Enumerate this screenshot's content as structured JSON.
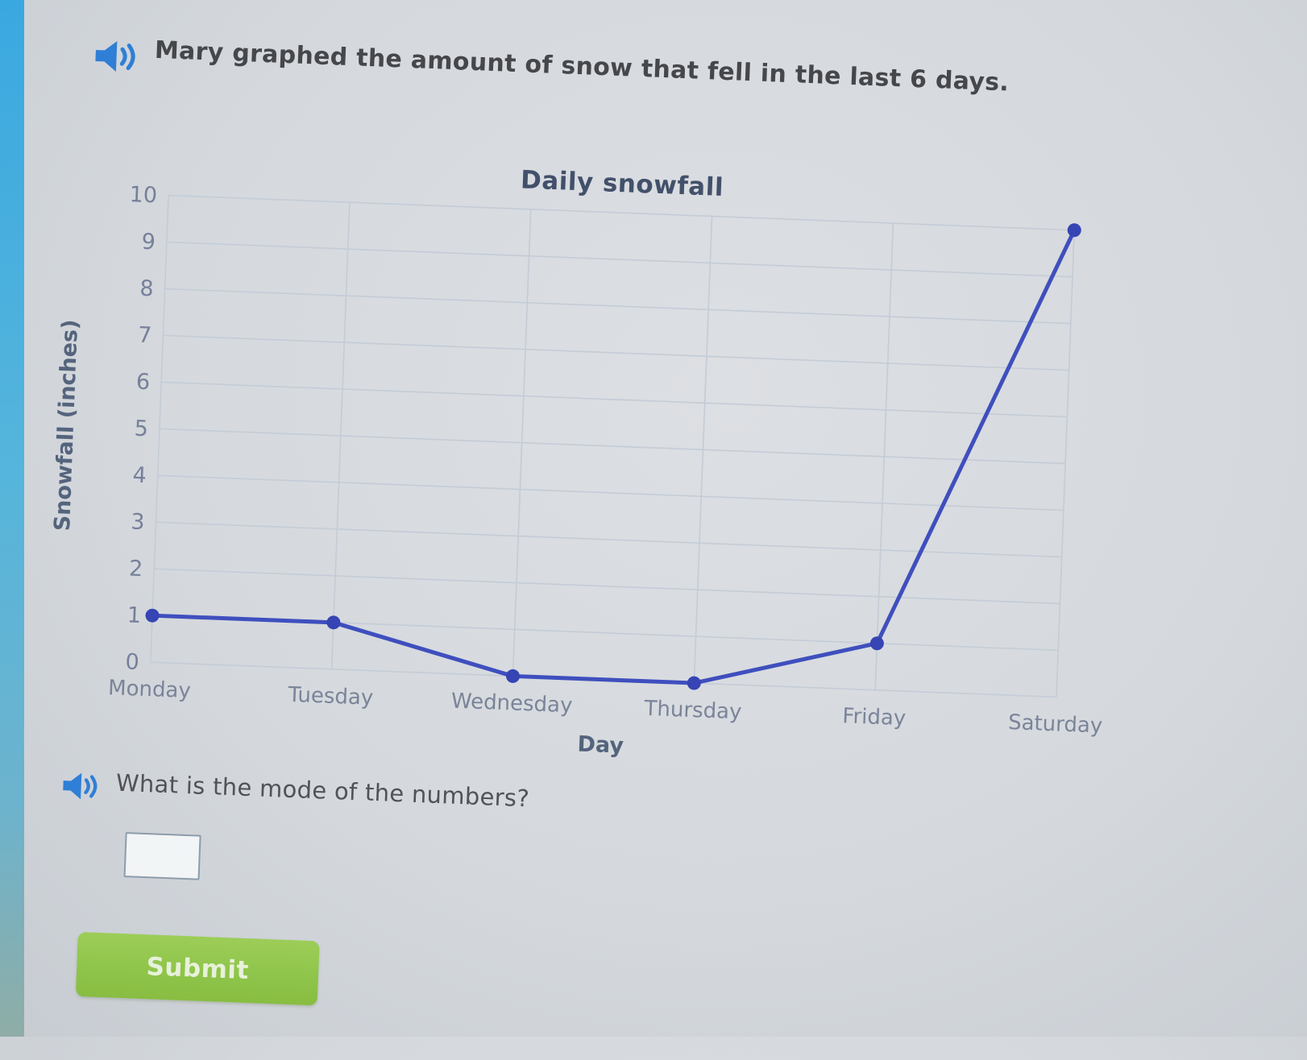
{
  "prompt": {
    "text": "Mary graphed the amount of snow that fell in the last 6 days.",
    "audio_icon": "speaker-with-sound-waves-icon"
  },
  "chart_data": {
    "type": "line",
    "title": "Daily snowfall",
    "categories": [
      "Monday",
      "Tuesday",
      "Wednesday",
      "Thursday",
      "Friday",
      "Saturday"
    ],
    "values": [
      1,
      1,
      0,
      0,
      1,
      10
    ],
    "xlabel": "Day",
    "ylabel": "Snowfall (inches)",
    "ylim": [
      0,
      10
    ],
    "ytick_step": 1,
    "yticks": [
      0,
      1,
      2,
      3,
      4,
      5,
      6,
      7,
      8,
      9,
      10
    ],
    "grid": true,
    "legend": "none",
    "line_color": "#3f4fbe",
    "point_color": "#3644b4",
    "grid_color": "#c4ccd7"
  },
  "question": {
    "text": "What is the mode of the numbers?",
    "audio_icon": "speaker-with-sound-waves-icon",
    "answer_value": "",
    "answer_placeholder": ""
  },
  "submit_button": {
    "label": "Submit"
  },
  "colors": {
    "page_background": "#d6d9dd",
    "edge_strip_top": "#3aa8e0",
    "edge_strip_bottom": "#8fada6",
    "speaker_blue": "#2f7fd6",
    "prompt_text": "#46474b",
    "chart_text": "#42506b",
    "tick_text": "#76809a",
    "submit_green": "#8ec449",
    "submit_text": "#e7f1da",
    "input_border": "#8d9cab"
  }
}
